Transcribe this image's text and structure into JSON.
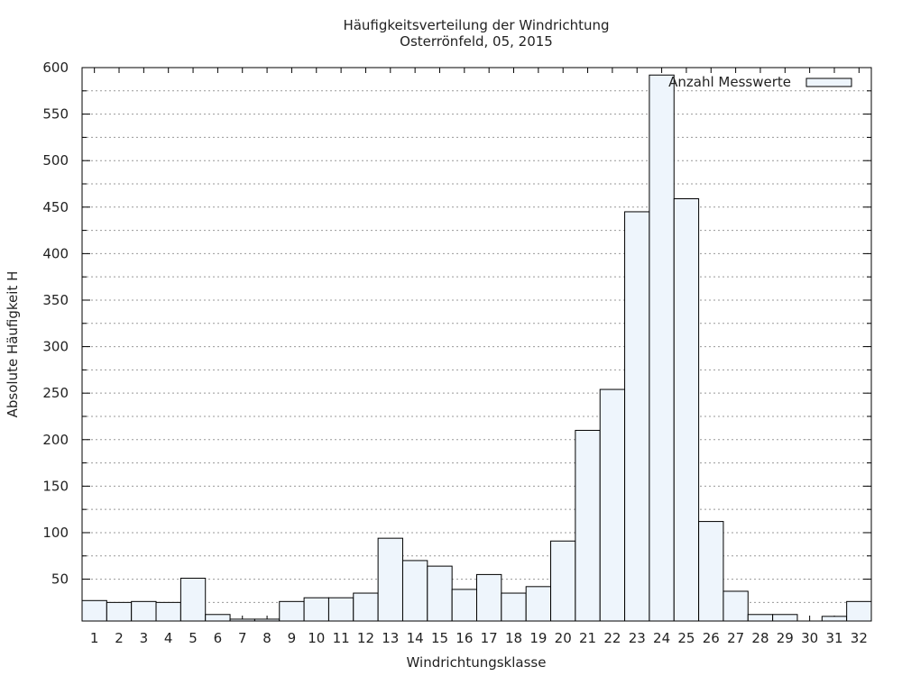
{
  "chart_data": {
    "type": "bar",
    "title": "Häufigkeitsverteilung der Windrichtung",
    "subtitle": "Osterrönfeld, 05, 2015",
    "xlabel": "Windrichtungsklasse",
    "ylabel": "Absolute Häufigkeit H",
    "categories": [
      "1",
      "2",
      "3",
      "4",
      "5",
      "6",
      "7",
      "8",
      "9",
      "10",
      "11",
      "12",
      "13",
      "14",
      "15",
      "16",
      "17",
      "18",
      "19",
      "20",
      "21",
      "22",
      "23",
      "24",
      "25",
      "26",
      "27",
      "28",
      "29",
      "30",
      "31",
      "32"
    ],
    "series": [
      {
        "name": "Anzahl Messwerte",
        "values": [
          27,
          25,
          26,
          25,
          51,
          12,
          7,
          7,
          26,
          30,
          30,
          35,
          94,
          70,
          64,
          39,
          55,
          35,
          42,
          91,
          210,
          254,
          445,
          592,
          459,
          112,
          37,
          12,
          12,
          0,
          10,
          26
        ]
      }
    ],
    "ylim": [
      5,
      600
    ],
    "yticks": [
      50,
      100,
      150,
      200,
      250,
      300,
      350,
      400,
      450,
      500,
      550,
      600
    ],
    "grid": "horizontal-dotted",
    "legend_position": "top-right",
    "colors": {
      "bar_fill": "#eef5fc",
      "bar_stroke": "#000000",
      "grid": "#999999"
    }
  }
}
